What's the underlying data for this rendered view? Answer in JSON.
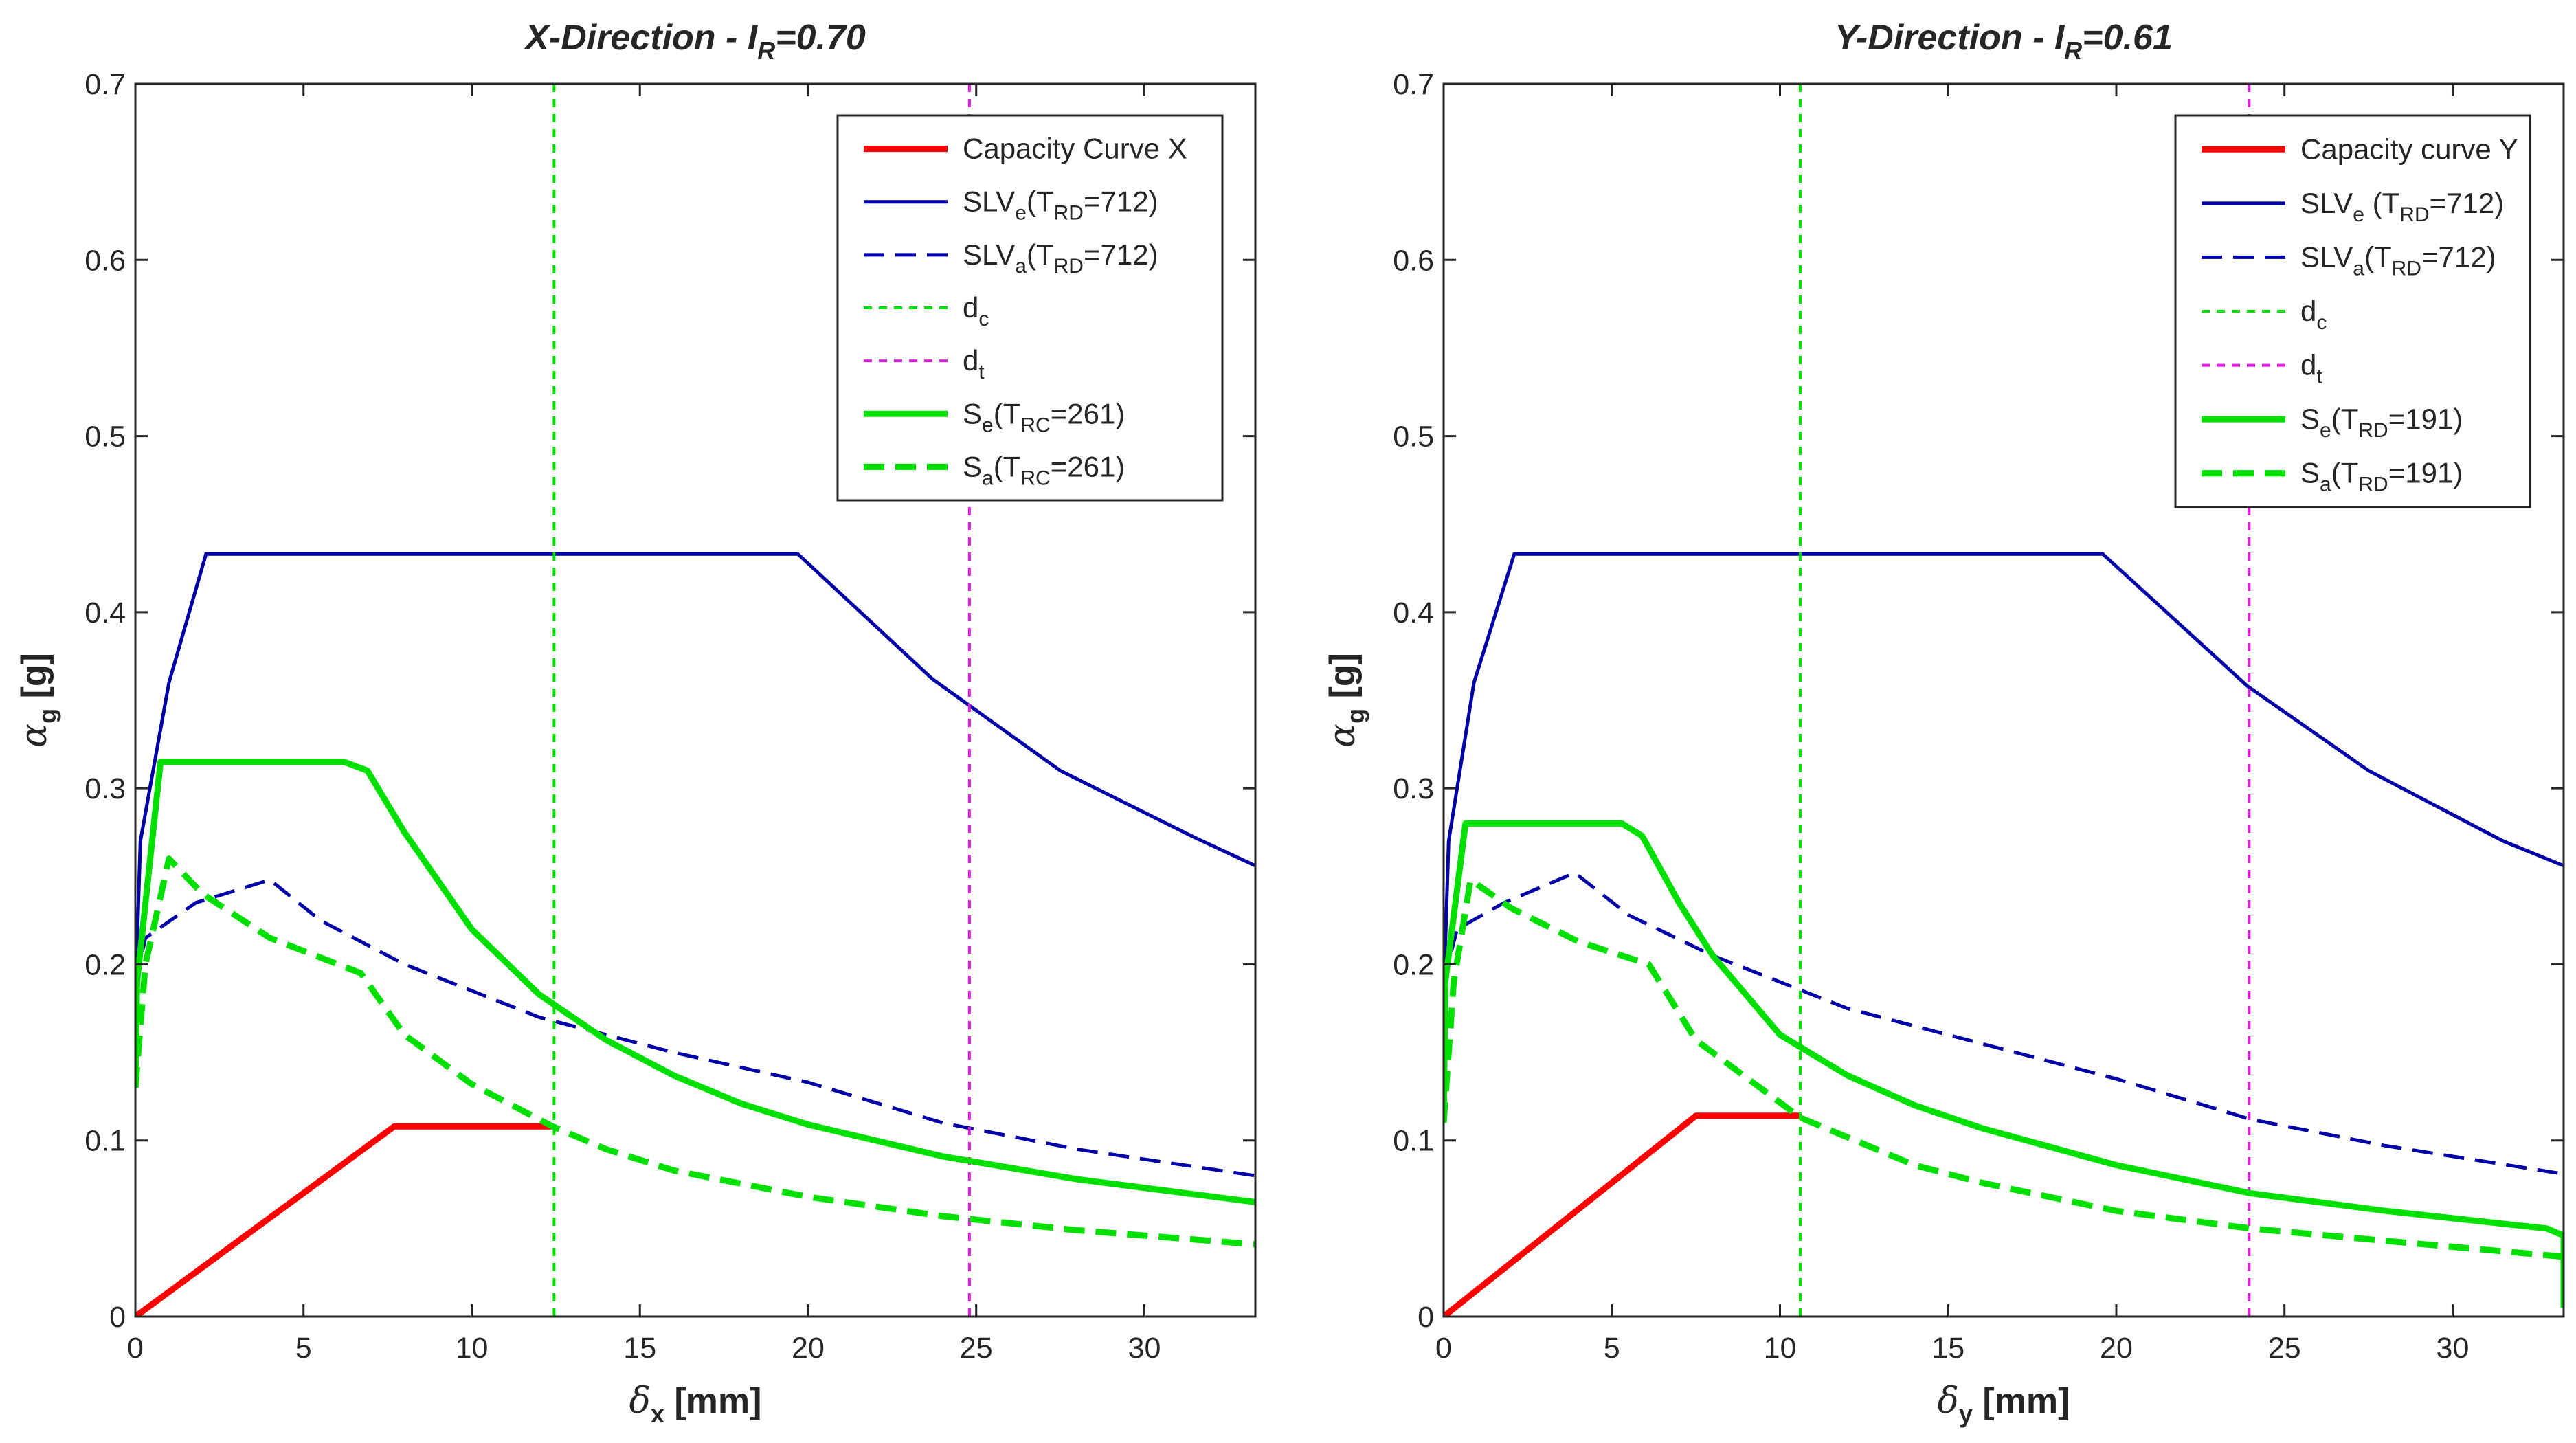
{
  "chart_data": [
    {
      "type": "line",
      "title": {
        "main": "X-Direction - I",
        "sub": "R",
        "rest": "=0.70"
      },
      "xlabel": {
        "sym": "δ",
        "sub": "x",
        "rest": " [mm]"
      },
      "ylabel": {
        "sym": "α",
        "sub": "g",
        "rest": " [g]"
      },
      "xlim": [
        0,
        33.3
      ],
      "ylim": [
        0,
        0.7
      ],
      "xticks": [
        0,
        5,
        10,
        15,
        20,
        25,
        30
      ],
      "yticks": [
        0,
        0.1,
        0.2,
        0.3,
        0.4,
        0.5,
        0.6,
        0.7
      ],
      "ytick_labels": [
        "0",
        "0.1",
        "0.2",
        "0.3",
        "0.4",
        "0.5",
        "0.6",
        "0.7"
      ],
      "grid": false,
      "legend_position": "top-right",
      "series": [
        {
          "key": "capacity",
          "legend": {
            "main": "Capacity Curve X"
          },
          "color": "#ff0000",
          "style": "solid",
          "weight": "thick",
          "x": [
            0,
            7.7,
            12.4
          ],
          "y": [
            0,
            0.108,
            0.108
          ]
        },
        {
          "key": "slve",
          "legend": {
            "main": "SLV",
            "sub1": "e",
            "mid": "(T",
            "sub2": "RD",
            "end": "=712)"
          },
          "color": "#0000a8",
          "style": "solid",
          "weight": "thin",
          "x": [
            0,
            0.15,
            1.0,
            2.1,
            19.7,
            23.7,
            27.5,
            31.5,
            33.3
          ],
          "y": [
            0.18,
            0.27,
            0.36,
            0.433,
            0.433,
            0.362,
            0.31,
            0.272,
            0.256
          ]
        },
        {
          "key": "slva",
          "legend": {
            "main": "SLV",
            "sub1": "a",
            "mid": "(T",
            "sub2": "RD",
            "end": "=712)"
          },
          "color": "#0000a8",
          "style": "dashed",
          "weight": "thin",
          "x": [
            0,
            0.3,
            1.8,
            4.0,
            5.5,
            8.0,
            12.0,
            16.0,
            20.0,
            24.0,
            28.0,
            33.3
          ],
          "y": [
            0.19,
            0.215,
            0.235,
            0.248,
            0.225,
            0.2,
            0.17,
            0.15,
            0.133,
            0.11,
            0.095,
            0.08
          ]
        },
        {
          "key": "dc",
          "legend": {
            "main": "d",
            "sub1": "c"
          },
          "color": "#00e000",
          "style": "dotted",
          "weight": "vline",
          "x": [
            12.45,
            12.45
          ],
          "y": [
            0,
            0.7
          ]
        },
        {
          "key": "dt",
          "legend": {
            "main": "d",
            "sub1": "t"
          },
          "color": "#e020e0",
          "style": "dotted",
          "weight": "vline",
          "x": [
            24.8,
            24.8
          ],
          "y": [
            0,
            0.7
          ]
        },
        {
          "key": "se",
          "legend": {
            "main": "S",
            "sub1": "e",
            "mid": "(T",
            "sub2": "RC",
            "end": "=261)"
          },
          "color": "#00e000",
          "style": "solid",
          "weight": "thick",
          "x": [
            0,
            0.05,
            0.75,
            6.2,
            6.9,
            8.0,
            10.0,
            12.0,
            14.0,
            16.0,
            18.0,
            20.0,
            24.0,
            28.0,
            33.3
          ],
          "y": [
            0.13,
            0.19,
            0.315,
            0.315,
            0.31,
            0.275,
            0.22,
            0.183,
            0.157,
            0.137,
            0.121,
            0.109,
            0.091,
            0.078,
            0.065
          ]
        },
        {
          "key": "sa",
          "legend": {
            "main": "S",
            "sub1": "a",
            "mid": "(T",
            "sub2": "RC",
            "end": "=261)"
          },
          "color": "#00e000",
          "style": "dashed",
          "weight": "thick",
          "x": [
            0,
            0.3,
            1.0,
            2.0,
            4.0,
            6.7,
            8.0,
            10.0,
            12.4,
            14.0,
            16.0,
            20.0,
            24.0,
            28.0,
            33.3
          ],
          "y": [
            0.13,
            0.2,
            0.26,
            0.24,
            0.215,
            0.195,
            0.16,
            0.132,
            0.108,
            0.095,
            0.083,
            0.068,
            0.057,
            0.049,
            0.041
          ]
        }
      ]
    },
    {
      "type": "line",
      "title": {
        "main": "Y-Direction - I",
        "sub": "R",
        "rest": "=0.61"
      },
      "xlabel": {
        "sym": "δ",
        "sub": "y",
        "rest": " [mm]"
      },
      "ylabel": {
        "sym": "α",
        "sub": "g",
        "rest": " [g]"
      },
      "xlim": [
        0,
        33.3
      ],
      "ylim": [
        0,
        0.7
      ],
      "xticks": [
        0,
        5,
        10,
        15,
        20,
        25,
        30
      ],
      "yticks": [
        0,
        0.1,
        0.2,
        0.3,
        0.4,
        0.5,
        0.6,
        0.7
      ],
      "ytick_labels": [
        "0",
        "0.1",
        "0.2",
        "0.3",
        "0.4",
        "0.5",
        "0.6",
        "0.7"
      ],
      "grid": false,
      "legend_position": "top-right",
      "series": [
        {
          "key": "capacity",
          "legend": {
            "main": "Capacity curve Y"
          },
          "color": "#ff0000",
          "style": "solid",
          "weight": "thick",
          "x": [
            0,
            7.5,
            10.6
          ],
          "y": [
            0,
            0.114,
            0.114
          ]
        },
        {
          "key": "slve",
          "legend": {
            "main": "SLV",
            "sub1": "e",
            "mid": " (T",
            "sub2": "RD",
            "end": "=712)"
          },
          "color": "#0000a8",
          "style": "solid",
          "weight": "thin",
          "x": [
            0,
            0.15,
            0.9,
            2.1,
            19.6,
            23.9,
            27.5,
            31.5,
            33.3
          ],
          "y": [
            0.18,
            0.27,
            0.36,
            0.433,
            0.433,
            0.358,
            0.31,
            0.27,
            0.256
          ]
        },
        {
          "key": "slva",
          "legend": {
            "main": "SLV",
            "sub1": "a",
            "mid": "(T",
            "sub2": "RD",
            "end": "=712)"
          },
          "color": "#0000a8",
          "style": "dashed",
          "weight": "thin",
          "x": [
            0,
            0.4,
            1.8,
            3.9,
            5.5,
            8.0,
            12.0,
            16.0,
            20.0,
            24.0,
            28.0,
            33.3
          ],
          "y": [
            0.19,
            0.22,
            0.235,
            0.252,
            0.228,
            0.205,
            0.175,
            0.155,
            0.135,
            0.112,
            0.097,
            0.081
          ]
        },
        {
          "key": "dc",
          "legend": {
            "main": "d",
            "sub1": "c"
          },
          "color": "#00e000",
          "style": "dotted",
          "weight": "vline",
          "x": [
            10.6,
            10.6
          ],
          "y": [
            0,
            0.7
          ]
        },
        {
          "key": "dt",
          "legend": {
            "main": "d",
            "sub1": "t"
          },
          "color": "#e020e0",
          "style": "dotted",
          "weight": "vline",
          "x": [
            23.95,
            23.95
          ],
          "y": [
            0,
            0.7
          ]
        },
        {
          "key": "se",
          "legend": {
            "main": "S",
            "sub1": "e",
            "mid": "(T",
            "sub2": "RD",
            "end": "=191)"
          },
          "color": "#00e000",
          "style": "solid",
          "weight": "thick",
          "x": [
            0,
            0.05,
            0.65,
            5.3,
            5.9,
            7.0,
            8.0,
            10.0,
            12.0,
            14.0,
            16.0,
            20.0,
            24.0,
            28.0,
            32.8,
            33.3,
            33.3
          ],
          "y": [
            0.11,
            0.19,
            0.28,
            0.28,
            0.273,
            0.235,
            0.205,
            0.16,
            0.137,
            0.12,
            0.107,
            0.086,
            0.07,
            0.06,
            0.05,
            0.046,
            0.005
          ]
        },
        {
          "key": "sa",
          "legend": {
            "main": "S",
            "sub1": "a",
            "mid": "(T",
            "sub2": "RD",
            "end": "=191)"
          },
          "color": "#00e000",
          "style": "dashed",
          "weight": "thick",
          "x": [
            0,
            0.3,
            0.8,
            2.0,
            4.0,
            6.1,
            7.5,
            10.6,
            14.0,
            16.0,
            20.0,
            24.0,
            28.0,
            33.3
          ],
          "y": [
            0.11,
            0.19,
            0.248,
            0.232,
            0.213,
            0.2,
            0.157,
            0.113,
            0.086,
            0.076,
            0.06,
            0.05,
            0.043,
            0.034
          ]
        }
      ]
    }
  ]
}
